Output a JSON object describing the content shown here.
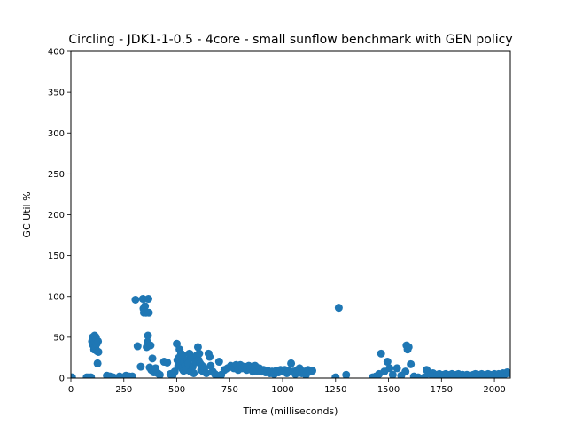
{
  "chart_data": {
    "type": "scatter",
    "title": "Circling - JDK1-1-0.5 - 4core -  small sunflow benchmark with GEN policy",
    "xlabel": "Time (milliseconds)",
    "ylabel": "GC Util %",
    "xlim": [
      0,
      2075
    ],
    "ylim": [
      0,
      400
    ],
    "xticks": [
      0,
      250,
      500,
      750,
      1000,
      1250,
      1500,
      1750,
      2000
    ],
    "yticks": [
      0,
      50,
      100,
      150,
      200,
      250,
      300,
      350,
      400
    ],
    "grid": false,
    "marker_color": "#1f77b4",
    "series": [
      {
        "points": [
          [
            5,
            1
          ],
          [
            75,
            1
          ],
          [
            85,
            1
          ],
          [
            95,
            1
          ],
          [
            100,
            45
          ],
          [
            103,
            50
          ],
          [
            106,
            40
          ],
          [
            108,
            48
          ],
          [
            110,
            35
          ],
          [
            112,
            52
          ],
          [
            114,
            44
          ],
          [
            116,
            38
          ],
          [
            118,
            50
          ],
          [
            120,
            47
          ],
          [
            122,
            42
          ],
          [
            124,
            33
          ],
          [
            126,
            18
          ],
          [
            128,
            45
          ],
          [
            130,
            32
          ],
          [
            170,
            3
          ],
          [
            185,
            2
          ],
          [
            200,
            1
          ],
          [
            230,
            2
          ],
          [
            260,
            3
          ],
          [
            275,
            2
          ],
          [
            290,
            2
          ],
          [
            305,
            96
          ],
          [
            315,
            39
          ],
          [
            330,
            14
          ],
          [
            340,
            97
          ],
          [
            343,
            85
          ],
          [
            345,
            80
          ],
          [
            347,
            82
          ],
          [
            350,
            88
          ],
          [
            355,
            80
          ],
          [
            358,
            38
          ],
          [
            362,
            44
          ],
          [
            364,
            52
          ],
          [
            366,
            97
          ],
          [
            368,
            80
          ],
          [
            372,
            13
          ],
          [
            376,
            40
          ],
          [
            380,
            10
          ],
          [
            385,
            24
          ],
          [
            392,
            7
          ],
          [
            400,
            12
          ],
          [
            410,
            6
          ],
          [
            420,
            4
          ],
          [
            440,
            20
          ],
          [
            455,
            19
          ],
          [
            470,
            5
          ],
          [
            480,
            3
          ],
          [
            490,
            8
          ],
          [
            500,
            42
          ],
          [
            503,
            22
          ],
          [
            507,
            15
          ],
          [
            510,
            25
          ],
          [
            513,
            35
          ],
          [
            516,
            18
          ],
          [
            520,
            30
          ],
          [
            524,
            12
          ],
          [
            528,
            28
          ],
          [
            532,
            9
          ],
          [
            536,
            20
          ],
          [
            540,
            15
          ],
          [
            545,
            10
          ],
          [
            550,
            22
          ],
          [
            555,
            18
          ],
          [
            560,
            30
          ],
          [
            565,
            8
          ],
          [
            570,
            25
          ],
          [
            575,
            14
          ],
          [
            580,
            6
          ],
          [
            590,
            20
          ],
          [
            595,
            28
          ],
          [
            600,
            38
          ],
          [
            603,
            22
          ],
          [
            606,
            30
          ],
          [
            610,
            18
          ],
          [
            615,
            10
          ],
          [
            620,
            15
          ],
          [
            625,
            8
          ],
          [
            630,
            12
          ],
          [
            640,
            6
          ],
          [
            650,
            30
          ],
          [
            655,
            26
          ],
          [
            660,
            15
          ],
          [
            670,
            8
          ],
          [
            680,
            5
          ],
          [
            690,
            3
          ],
          [
            700,
            20
          ],
          [
            710,
            4
          ],
          [
            725,
            10
          ],
          [
            740,
            12
          ],
          [
            755,
            15
          ],
          [
            770,
            12
          ],
          [
            780,
            16
          ],
          [
            790,
            10
          ],
          [
            800,
            16
          ],
          [
            810,
            12
          ],
          [
            820,
            14
          ],
          [
            830,
            10
          ],
          [
            840,
            15
          ],
          [
            850,
            12
          ],
          [
            860,
            8
          ],
          [
            870,
            15
          ],
          [
            880,
            9
          ],
          [
            890,
            12
          ],
          [
            900,
            8
          ],
          [
            910,
            10
          ],
          [
            920,
            7
          ],
          [
            930,
            9
          ],
          [
            940,
            6
          ],
          [
            950,
            8
          ],
          [
            960,
            5
          ],
          [
            970,
            9
          ],
          [
            980,
            7
          ],
          [
            990,
            10
          ],
          [
            1000,
            8
          ],
          [
            1010,
            10
          ],
          [
            1020,
            6
          ],
          [
            1030,
            9
          ],
          [
            1040,
            18
          ],
          [
            1050,
            8
          ],
          [
            1060,
            5
          ],
          [
            1070,
            10
          ],
          [
            1080,
            12
          ],
          [
            1090,
            6
          ],
          [
            1100,
            8
          ],
          [
            1110,
            4
          ],
          [
            1120,
            10
          ],
          [
            1130,
            8
          ],
          [
            1140,
            9
          ],
          [
            1250,
            1
          ],
          [
            1265,
            86
          ],
          [
            1300,
            4
          ],
          [
            1425,
            1
          ],
          [
            1440,
            2
          ],
          [
            1455,
            5
          ],
          [
            1465,
            30
          ],
          [
            1480,
            8
          ],
          [
            1495,
            20
          ],
          [
            1505,
            12
          ],
          [
            1520,
            4
          ],
          [
            1540,
            12
          ],
          [
            1560,
            3
          ],
          [
            1580,
            8
          ],
          [
            1585,
            40
          ],
          [
            1590,
            35
          ],
          [
            1595,
            38
          ],
          [
            1605,
            17
          ],
          [
            1620,
            2
          ],
          [
            1640,
            1
          ],
          [
            1670,
            1
          ],
          [
            1680,
            10
          ],
          [
            1690,
            7
          ],
          [
            1700,
            5
          ],
          [
            1710,
            6
          ],
          [
            1720,
            3
          ],
          [
            1730,
            4
          ],
          [
            1740,
            5
          ],
          [
            1750,
            3
          ],
          [
            1760,
            4
          ],
          [
            1770,
            5
          ],
          [
            1780,
            3
          ],
          [
            1790,
            4
          ],
          [
            1800,
            5
          ],
          [
            1810,
            3
          ],
          [
            1820,
            4
          ],
          [
            1830,
            5
          ],
          [
            1840,
            3
          ],
          [
            1850,
            4
          ],
          [
            1860,
            3
          ],
          [
            1870,
            4
          ],
          [
            1880,
            2
          ],
          [
            1890,
            3
          ],
          [
            1900,
            4
          ],
          [
            1910,
            5
          ],
          [
            1920,
            3
          ],
          [
            1930,
            4
          ],
          [
            1940,
            5
          ],
          [
            1950,
            3
          ],
          [
            1960,
            4
          ],
          [
            1970,
            5
          ],
          [
            1980,
            4
          ],
          [
            1990,
            3
          ],
          [
            2000,
            5
          ],
          [
            2010,
            4
          ],
          [
            2020,
            5
          ],
          [
            2030,
            4
          ],
          [
            2040,
            6
          ],
          [
            2050,
            5
          ],
          [
            2060,
            7
          ],
          [
            2070,
            6
          ]
        ]
      }
    ]
  }
}
